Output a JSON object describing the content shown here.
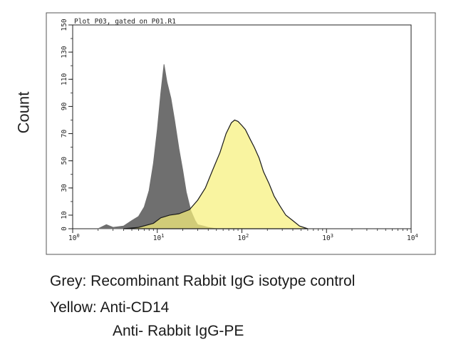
{
  "chart_data": {
    "type": "area",
    "title": "Plot P03, gated on P01.R1",
    "ylabel": "Count",
    "xlabel": "",
    "x_scale": "log",
    "xlim": [
      1,
      10000
    ],
    "ylim": [
      0,
      150
    ],
    "x_ticks": [
      {
        "base": "10",
        "exp": "0"
      },
      {
        "base": "10",
        "exp": "1"
      },
      {
        "base": "10",
        "exp": "2"
      },
      {
        "base": "10",
        "exp": "3"
      },
      {
        "base": "10",
        "exp": "4"
      }
    ],
    "y_ticks": [
      "0",
      "10",
      "30",
      "50",
      "70",
      "90",
      "110",
      "130",
      "150"
    ],
    "series": [
      {
        "color": "#6f6f6f",
        "x": [
          2.0,
          2.5,
          3.0,
          4.0,
          5.0,
          6.0,
          7.0,
          8.0,
          9.0,
          10.0,
          11.0,
          12.0,
          13.0,
          14.5,
          16.0,
          18.0,
          20.0,
          22.0,
          25.0,
          28.0,
          30.0,
          35.0,
          40.0,
          50.0
        ],
        "y": [
          0,
          3,
          1,
          2,
          6,
          9,
          16,
          28,
          48,
          73,
          100,
          121,
          108,
          96,
          80,
          59,
          43,
          27,
          13,
          6,
          3,
          2,
          1,
          0
        ]
      },
      {
        "color": "#f7f07c",
        "x": [
          4.0,
          6.0,
          9.0,
          11.0,
          14.0,
          18.0,
          24.0,
          30.0,
          37.0,
          45.0,
          55.0,
          65.0,
          75.0,
          82.0,
          90.0,
          100.0,
          110.0,
          125.0,
          140.0,
          160.0,
          180.0,
          210.0,
          240.0,
          280.0,
          330.0,
          400.0,
          480.0,
          600.0
        ],
        "y": [
          0,
          1,
          4,
          8,
          10,
          11,
          14,
          21,
          30,
          43,
          56,
          70,
          78,
          80,
          79,
          76,
          73,
          66,
          60,
          52,
          42,
          33,
          24,
          17,
          10,
          6,
          2,
          0
        ]
      }
    ]
  },
  "captions": {
    "line1": "Grey: Recombinant Rabbit IgG isotype control",
    "line2": "Yellow: Anti-CD14",
    "line3": "Anti- Rabbit IgG-PE"
  }
}
